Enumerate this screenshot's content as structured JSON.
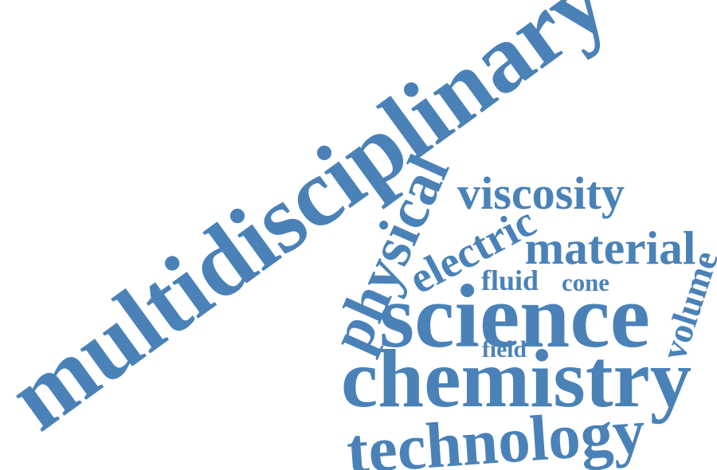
{
  "word_color": "#4A82B8",
  "words": {
    "multidisciplinary": "multidisciplinary",
    "physical": "physical",
    "viscosity": "viscosity",
    "electric": "electric",
    "material": "material",
    "fluid": "fluid",
    "cone": "cone",
    "volume": "volume",
    "science": "science",
    "field": "field",
    "chemistry": "chemistry",
    "technology": "technology"
  }
}
